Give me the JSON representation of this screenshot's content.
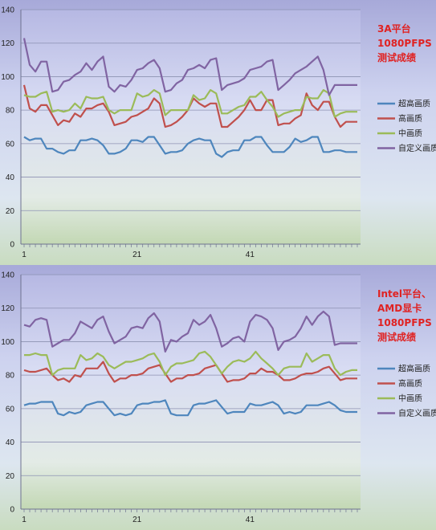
{
  "chart_data": [
    {
      "type": "line",
      "annotation": [
        "3A平台",
        "1080PFPS",
        "测试成绩"
      ],
      "ylim": [
        0,
        140
      ],
      "yticks": [
        "0",
        "20",
        "40",
        "60",
        "80",
        "100",
        "120",
        "140"
      ],
      "xticks": [
        {
          "x": 1,
          "label": "1"
        },
        {
          "x": 21,
          "label": "21"
        },
        {
          "x": 41,
          "label": "41"
        }
      ],
      "xmax": 60,
      "grid": "horizontal",
      "legend": "right",
      "series": [
        {
          "name": "超高画质",
          "color": "#4e86bd",
          "values": [
            64,
            62,
            63,
            63,
            57,
            57,
            55,
            54,
            56,
            56,
            62,
            62,
            63,
            62,
            59,
            54,
            54,
            55,
            57,
            62,
            62,
            61,
            64,
            64,
            59,
            54,
            55,
            55,
            56,
            60,
            62,
            63,
            62,
            62,
            54,
            52,
            55,
            56,
            56,
            62,
            62,
            64,
            64,
            59,
            55,
            55,
            55,
            58,
            63,
            61,
            62,
            64,
            64,
            55,
            55,
            56,
            56,
            55,
            55,
            55
          ]
        },
        {
          "name": "高画质",
          "color": "#c0504d",
          "values": [
            95,
            81,
            79,
            83,
            83,
            77,
            71,
            74,
            73,
            78,
            76,
            81,
            81,
            83,
            84,
            79,
            71,
            72,
            73,
            76,
            77,
            79,
            81,
            87,
            84,
            70,
            71,
            73,
            76,
            80,
            87,
            84,
            82,
            84,
            84,
            70,
            70,
            73,
            76,
            80,
            86,
            80,
            80,
            86,
            86,
            71,
            72,
            72,
            75,
            77,
            90,
            83,
            80,
            85,
            85,
            76,
            70,
            73,
            73,
            73
          ]
        },
        {
          "name": "中画质",
          "color": "#9bbb59",
          "values": [
            89,
            88,
            88,
            90,
            91,
            79,
            80,
            79,
            80,
            84,
            81,
            88,
            87,
            87,
            88,
            80,
            78,
            80,
            80,
            80,
            90,
            88,
            89,
            92,
            90,
            77,
            80,
            80,
            80,
            80,
            89,
            86,
            87,
            92,
            90,
            78,
            78,
            80,
            82,
            83,
            88,
            88,
            91,
            86,
            82,
            76,
            78,
            79,
            80,
            80,
            88,
            87,
            87,
            92,
            90,
            76,
            78,
            79,
            79,
            79
          ]
        },
        {
          "name": "自定义画质",
          "color": "#8064a2",
          "values": [
            123,
            107,
            103,
            109,
            109,
            91,
            92,
            97,
            98,
            101,
            103,
            108,
            104,
            109,
            112,
            94,
            91,
            95,
            94,
            98,
            104,
            105,
            108,
            110,
            105,
            91,
            92,
            96,
            98,
            104,
            105,
            107,
            105,
            110,
            111,
            92,
            95,
            96,
            97,
            99,
            104,
            105,
            106,
            109,
            110,
            92,
            95,
            98,
            102,
            104,
            106,
            109,
            112,
            104,
            89,
            95,
            95,
            95,
            95,
            95
          ]
        }
      ]
    },
    {
      "type": "line",
      "annotation": [
        "Intel平台、",
        "AMD显卡",
        "1080PFPS",
        "测试成绩"
      ],
      "ylim": [
        0,
        140
      ],
      "yticks": [
        "0",
        "20",
        "40",
        "60",
        "80",
        "100",
        "120",
        "140"
      ],
      "xticks": [
        {
          "x": 1,
          "label": "1"
        },
        {
          "x": 21,
          "label": "21"
        },
        {
          "x": 41,
          "label": "41"
        }
      ],
      "xmax": 60,
      "grid": "horizontal",
      "legend": "right",
      "series": [
        {
          "name": "超高画质",
          "color": "#4e86bd",
          "values": [
            62,
            63,
            63,
            64,
            64,
            64,
            57,
            56,
            58,
            57,
            58,
            62,
            63,
            64,
            64,
            60,
            56,
            57,
            56,
            57,
            62,
            63,
            63,
            64,
            64,
            65,
            57,
            56,
            56,
            56,
            62,
            63,
            63,
            64,
            65,
            61,
            57,
            58,
            58,
            58,
            63,
            62,
            62,
            63,
            64,
            62,
            57,
            58,
            57,
            58,
            62,
            62,
            62,
            63,
            64,
            62,
            59,
            58,
            58,
            58
          ]
        },
        {
          "name": "高画质",
          "color": "#c0504d",
          "values": [
            83,
            82,
            82,
            83,
            84,
            80,
            77,
            78,
            76,
            80,
            79,
            84,
            84,
            84,
            88,
            81,
            76,
            78,
            78,
            80,
            80,
            81,
            84,
            85,
            86,
            81,
            76,
            78,
            78,
            80,
            80,
            81,
            84,
            85,
            86,
            81,
            76,
            77,
            77,
            78,
            81,
            81,
            84,
            82,
            82,
            80,
            77,
            77,
            78,
            80,
            81,
            81,
            82,
            84,
            85,
            81,
            77,
            78,
            78,
            78
          ]
        },
        {
          "name": "中画质",
          "color": "#9bbb59",
          "values": [
            92,
            92,
            93,
            92,
            92,
            80,
            83,
            84,
            84,
            84,
            92,
            89,
            90,
            93,
            91,
            86,
            84,
            86,
            88,
            88,
            89,
            90,
            92,
            93,
            88,
            80,
            85,
            87,
            87,
            88,
            89,
            93,
            94,
            91,
            86,
            81,
            85,
            88,
            89,
            88,
            90,
            94,
            90,
            87,
            84,
            80,
            84,
            85,
            85,
            85,
            93,
            88,
            90,
            92,
            92,
            84,
            80,
            82,
            83,
            83
          ]
        },
        {
          "name": "自定义画质",
          "color": "#8064a2",
          "values": [
            110,
            109,
            113,
            114,
            113,
            97,
            99,
            101,
            101,
            105,
            112,
            110,
            108,
            113,
            115,
            106,
            99,
            101,
            103,
            108,
            109,
            108,
            114,
            117,
            112,
            94,
            101,
            100,
            103,
            105,
            113,
            110,
            112,
            116,
            108,
            97,
            99,
            102,
            103,
            100,
            112,
            116,
            115,
            113,
            108,
            95,
            100,
            101,
            103,
            108,
            115,
            110,
            115,
            118,
            115,
            98,
            99,
            99,
            99,
            99
          ]
        }
      ]
    }
  ]
}
